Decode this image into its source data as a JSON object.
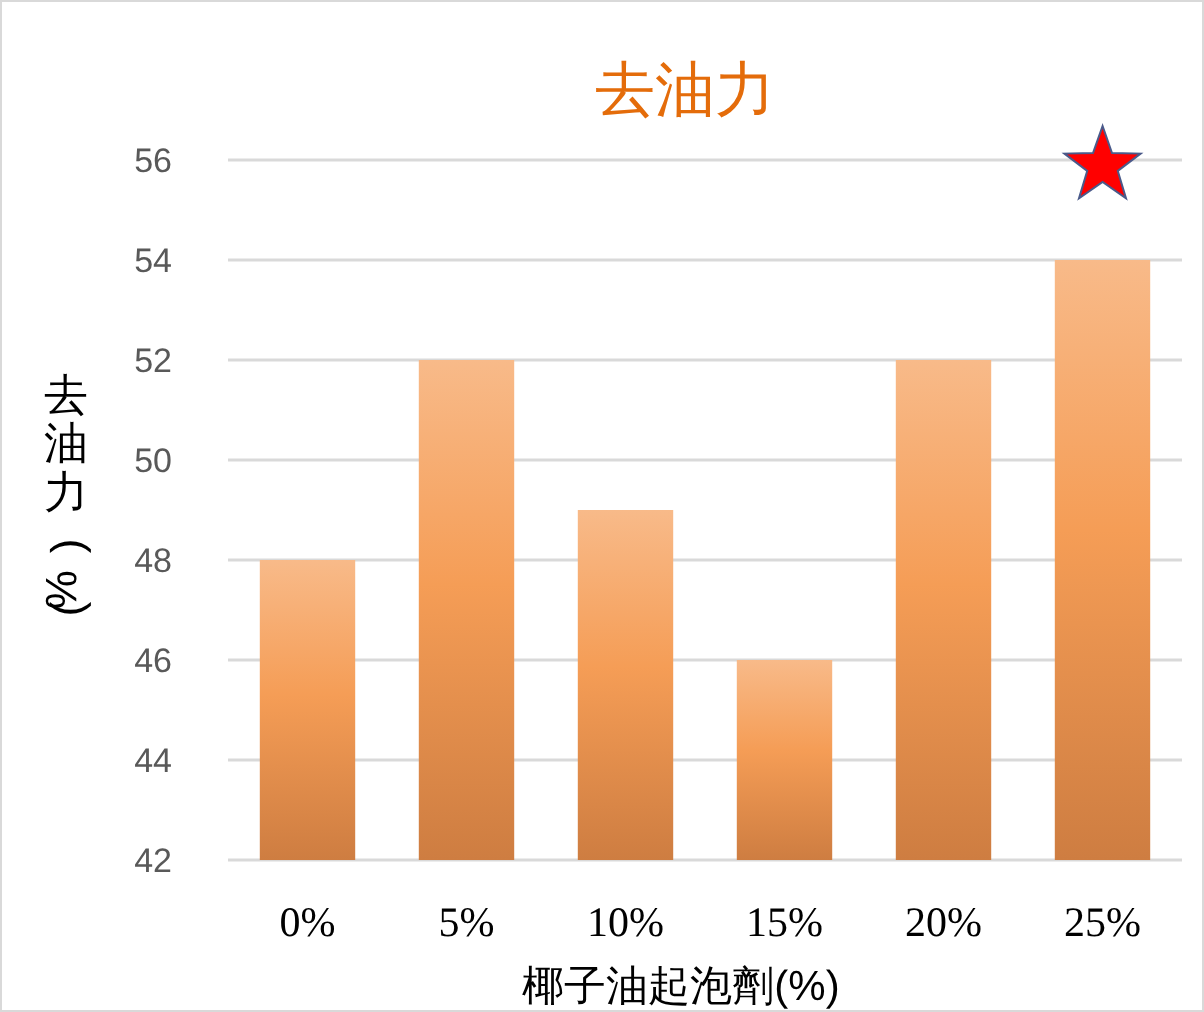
{
  "chart_data": {
    "type": "bar",
    "title": "去油力",
    "xlabel": "椰子油起泡劑(%)",
    "ylabel": "去油力(%)",
    "categories": [
      "0%",
      "5%",
      "10%",
      "15%",
      "20%",
      "25%"
    ],
    "values": [
      48,
      52,
      49,
      46,
      52,
      54
    ],
    "color": "#f59d56",
    "ylim": [
      42,
      56
    ],
    "yticks": [
      42,
      44,
      46,
      48,
      50,
      52,
      54,
      56
    ],
    "grid": "y"
  }
}
